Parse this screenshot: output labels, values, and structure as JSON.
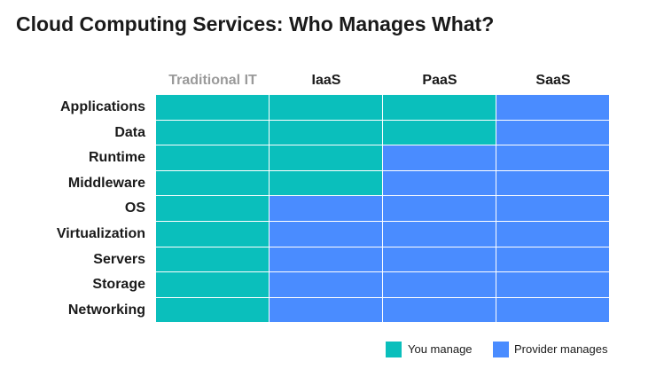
{
  "title": "Cloud Computing Services: Who Manages What?",
  "colors": {
    "you": "#0abfbc",
    "provider": "#4a8cff"
  },
  "columns": [
    {
      "label": "Traditional IT",
      "muted": true
    },
    {
      "label": "IaaS",
      "muted": false
    },
    {
      "label": "PaaS",
      "muted": false
    },
    {
      "label": "SaaS",
      "muted": false
    }
  ],
  "rows": [
    {
      "label": "Applications",
      "cells": [
        "you",
        "you",
        "you",
        "provider"
      ]
    },
    {
      "label": "Data",
      "cells": [
        "you",
        "you",
        "you",
        "provider"
      ]
    },
    {
      "label": "Runtime",
      "cells": [
        "you",
        "you",
        "provider",
        "provider"
      ]
    },
    {
      "label": "Middleware",
      "cells": [
        "you",
        "you",
        "provider",
        "provider"
      ]
    },
    {
      "label": "OS",
      "cells": [
        "you",
        "provider",
        "provider",
        "provider"
      ]
    },
    {
      "label": "Virtualization",
      "cells": [
        "you",
        "provider",
        "provider",
        "provider"
      ]
    },
    {
      "label": "Servers",
      "cells": [
        "you",
        "provider",
        "provider",
        "provider"
      ]
    },
    {
      "label": "Storage",
      "cells": [
        "you",
        "provider",
        "provider",
        "provider"
      ]
    },
    {
      "label": "Networking",
      "cells": [
        "you",
        "provider",
        "provider",
        "provider"
      ]
    }
  ],
  "legend": {
    "you_label": "You manage",
    "provider_label": "Provider manages"
  }
}
